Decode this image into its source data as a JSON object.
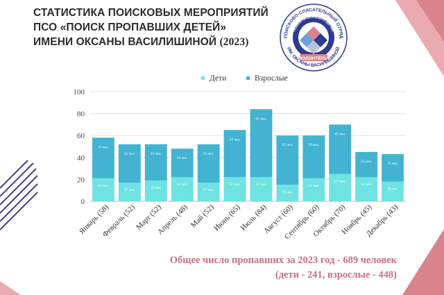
{
  "title": {
    "line1": "СТАТИСТИКА ПОИСКОВЫХ МЕРОПРИЯТИЙ",
    "line2": "ПСО «ПОИСК ПРОПАВШИХ ДЕТЕЙ»",
    "line3": "ИМЕНИ ОКСАНЫ ВАСИЛИШИНОЙ",
    "year": "(2023)"
  },
  "logo": {
    "top_text": "ПОИСКОВО-СПАСАТЕЛЬНЫЙ ОТРЯД",
    "mid_text": "ПОИСК ПРОПАВШИХ ДЕТЕЙ",
    "band_text": "ВОЛОНТЁРЫ",
    "bottom_text": "ИМ. ОКСАНЫ ВАСИЛИШИНОЙ"
  },
  "colors": {
    "children": "#6ee3e1",
    "adults": "#42b3d1",
    "accent": "#c9707a",
    "title": "#2b2b2b"
  },
  "chart_data": {
    "type": "bar",
    "stacked": true,
    "categories": [
      "Январь (58)",
      "Февраль (52)",
      "Март (52)",
      "Апрель (48)",
      "Май (52)",
      "Июнь (65)",
      "Июль (84)",
      "Август (60)",
      "Сентябрь (60)",
      "Октябрь (70)",
      "Ноябрь (45)",
      "Декабрь (43)"
    ],
    "series": [
      {
        "name": "Дети",
        "values": [
          21,
          17,
          19,
          22,
          17,
          22,
          22,
          15,
          21,
          25,
          22,
          18
        ],
        "labels": [
          "21 чел.",
          "17 чел.",
          "19 чел.",
          "22 чел.",
          "17 чел.",
          "22 чел.",
          "22 чел.",
          "15 чел.",
          "21 чел.",
          "25 чел.",
          "22 чел.",
          "18 чел."
        ]
      },
      {
        "name": "Взрослые",
        "values": [
          37,
          35,
          33,
          26,
          35,
          43,
          62,
          45,
          39,
          45,
          23,
          25
        ],
        "labels": [
          "37 чел.",
          "35 чел.",
          "33 чел.",
          "26 чел.",
          "35 чел.",
          "43 чел.",
          "62 чел.",
          "45 чел.",
          "39 чел.",
          "45 чел.",
          "23 чел.",
          "25 чел."
        ]
      }
    ],
    "ylim": [
      0,
      100
    ],
    "yticks": [
      "0",
      "20",
      "40",
      "60",
      "80",
      "100"
    ],
    "grid": true,
    "legend": "top-center"
  },
  "summary": {
    "line1": "Общее число пропавших за 2023 год - 689 человек",
    "line2": "(дети - 241, взрослые - 448)"
  }
}
